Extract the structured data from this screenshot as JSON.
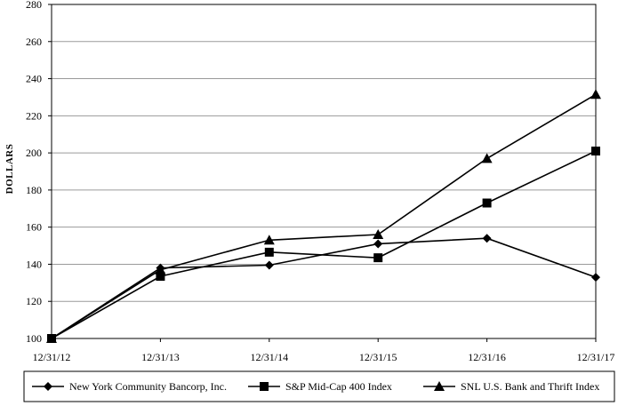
{
  "chart_data": {
    "type": "line",
    "title": "",
    "xlabel": "",
    "ylabel": "DOLLARS",
    "categories": [
      "12/31/12",
      "12/31/13",
      "12/31/14",
      "12/31/15",
      "12/31/16",
      "12/31/17"
    ],
    "ylim": [
      100,
      280
    ],
    "ytick_step": 20,
    "grid": "horizontal",
    "legend_position": "bottom",
    "series": [
      {
        "name": "New York Community Bancorp, Inc.",
        "marker": "diamond",
        "values": [
          100,
          138,
          139.5,
          151,
          154,
          133
        ]
      },
      {
        "name": "S&P Mid-Cap 400 Index",
        "marker": "square",
        "values": [
          100,
          133.5,
          146.5,
          143.5,
          173,
          201
        ]
      },
      {
        "name": "SNL U.S. Bank and Thrift Index",
        "marker": "triangle",
        "values": [
          100,
          137,
          153,
          156,
          197,
          231.5
        ]
      }
    ],
    "colors": {
      "line": "#000000",
      "grid": "#9a9a9a",
      "background": "#ffffff"
    }
  }
}
